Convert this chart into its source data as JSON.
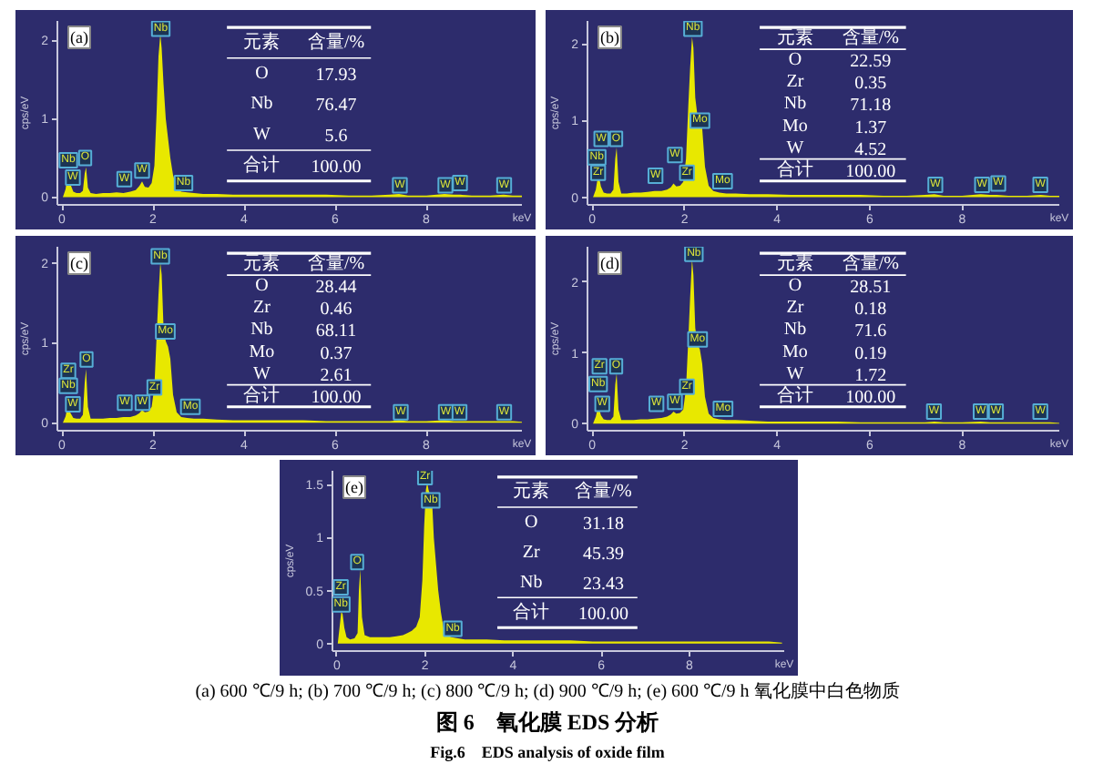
{
  "chart_data": [
    {
      "type": "area",
      "title": "(a)",
      "xlabel": "keV",
      "ylabel": "cps/eV",
      "color": "#e8e800",
      "xlim": [
        -0.1,
        10.1
      ],
      "ylim": [
        -0.1,
        2.25
      ],
      "xticks": [
        0,
        2,
        4,
        6,
        8
      ],
      "yticks": [
        0,
        1,
        2
      ],
      "x": [
        0.02,
        0.08,
        0.12,
        0.15,
        0.19,
        0.25,
        0.32,
        0.4,
        0.46,
        0.5,
        0.53,
        0.57,
        0.63,
        0.75,
        0.9,
        1.05,
        1.2,
        1.35,
        1.5,
        1.62,
        1.7,
        1.76,
        1.82,
        1.9,
        1.97,
        2.03,
        2.08,
        2.12,
        2.16,
        2.19,
        2.23,
        2.28,
        2.33,
        2.38,
        2.44,
        2.52,
        2.62,
        2.75,
        2.9,
        3.1,
        3.4,
        3.8,
        4.3,
        4.8,
        5.3,
        5.8,
        6.3,
        6.8,
        7.2,
        7.4,
        7.6,
        8.0,
        8.4,
        8.6,
        8.75,
        9.0,
        9.4,
        9.7,
        9.9,
        10.1
      ],
      "values": [
        0,
        0.1,
        0.28,
        null,
        0.16,
        0.07,
        0.05,
        0.05,
        0.08,
        0.3,
        0.38,
        0.12,
        0.05,
        0.04,
        0.05,
        0.05,
        0.06,
        0.05,
        0.07,
        0.09,
        0.14,
        0.2,
        0.13,
        0.12,
        0.18,
        0.4,
        1.1,
        1.8,
        2.08,
        1.9,
        1.45,
        1.0,
        0.75,
        0.5,
        0.28,
        0.12,
        0.07,
        0.06,
        0.05,
        0.04,
        0.04,
        0.03,
        0.03,
        0.03,
        0.03,
        0.03,
        0.02,
        0.02,
        0.03,
        0.04,
        0.02,
        0.02,
        0.04,
        0.03,
        0.03,
        0.02,
        0.02,
        0.03,
        0.02,
        0.02
      ],
      "annotations": [
        {
          "text": "Nb",
          "x": 0.14,
          "y": 0.47
        },
        {
          "text": "W",
          "x": 0.24,
          "y": 0.25
        },
        {
          "text": "O",
          "x": 0.51,
          "y": 0.5
        },
        {
          "text": "W",
          "x": 1.37,
          "y": 0.23
        },
        {
          "text": "W",
          "x": 1.76,
          "y": 0.34
        },
        {
          "text": "Nb",
          "x": 2.17,
          "y": 2.15
        },
        {
          "text": "Nb",
          "x": 2.67,
          "y": 0.18
        },
        {
          "text": "W",
          "x": 7.42,
          "y": 0.15
        },
        {
          "text": "W",
          "x": 8.42,
          "y": 0.15
        },
        {
          "text": "W",
          "x": 8.74,
          "y": 0.18
        },
        {
          "text": "W",
          "x": 9.71,
          "y": 0.15
        },
        "元素",
        "含量/%",
        "O",
        "17.93",
        "Nb",
        "76.47",
        "W",
        "5.6",
        "合计",
        "100.00"
      ]
    },
    {
      "type": "area",
      "title": "(b)",
      "xlabel": "keV",
      "ylabel": "cps/eV",
      "color": "#e8e800",
      "xlim": [
        -0.1,
        10.1
      ],
      "ylim": [
        -0.1,
        2.3
      ],
      "xticks": [
        0,
        2,
        4,
        6,
        8
      ],
      "yticks": [
        0,
        1,
        2
      ],
      "x": [
        0.02,
        0.08,
        0.12,
        0.15,
        0.19,
        0.25,
        0.32,
        0.4,
        0.46,
        0.5,
        0.53,
        0.57,
        0.63,
        0.75,
        0.9,
        1.05,
        1.2,
        1.35,
        1.5,
        1.62,
        1.7,
        1.76,
        1.82,
        1.9,
        1.97,
        2.03,
        2.08,
        2.12,
        2.16,
        2.19,
        2.23,
        2.28,
        2.33,
        2.38,
        2.44,
        2.52,
        2.62,
        2.75,
        2.9,
        3.1,
        3.4,
        3.8,
        4.3,
        4.8,
        5.3,
        5.8,
        6.3,
        6.8,
        7.2,
        7.4,
        7.6,
        8.0,
        8.4,
        8.6,
        8.75,
        9.0,
        9.4,
        9.7,
        9.9,
        10.1
      ],
      "values": [
        0,
        0.1,
        0.25,
        0.27,
        0.14,
        0.06,
        0.05,
        0.05,
        0.1,
        0.5,
        0.65,
        0.2,
        0.05,
        0.05,
        0.06,
        0.06,
        0.07,
        0.08,
        0.08,
        0.1,
        0.13,
        0.18,
        0.14,
        0.15,
        0.2,
        0.5,
        1.2,
        1.7,
        2.09,
        1.95,
        1.3,
        1.05,
        1.0,
        0.9,
        0.4,
        0.15,
        0.08,
        0.06,
        0.05,
        0.05,
        0.04,
        0.04,
        0.03,
        0.03,
        0.03,
        0.03,
        0.02,
        0.02,
        0.03,
        0.04,
        0.02,
        0.02,
        0.04,
        0.03,
        0.03,
        0.02,
        0.02,
        0.03,
        0.02,
        0.02
      ],
      "annotations": [
        {
          "text": "Nb",
          "x": 0.1,
          "y": 0.52
        },
        {
          "text": "Zr",
          "x": 0.13,
          "y": 0.32
        },
        {
          "text": "W",
          "x": 0.2,
          "y": 0.76
        },
        {
          "text": "O",
          "x": 0.52,
          "y": 0.76
        },
        {
          "text": "W",
          "x": 1.37,
          "y": 0.28
        },
        {
          "text": "W",
          "x": 1.79,
          "y": 0.55
        },
        {
          "text": "Zr",
          "x": 2.05,
          "y": 0.32
        },
        {
          "text": "Nb",
          "x": 2.18,
          "y": 2.2
        },
        {
          "text": "Mo",
          "x": 2.33,
          "y": 1.0
        },
        {
          "text": "Mo",
          "x": 2.82,
          "y": 0.21
        },
        {
          "text": "W",
          "x": 7.42,
          "y": 0.16
        },
        {
          "text": "W",
          "x": 8.43,
          "y": 0.16
        },
        {
          "text": "W",
          "x": 8.78,
          "y": 0.18
        },
        {
          "text": "W",
          "x": 9.69,
          "y": 0.16
        },
        "元素",
        "含量/%",
        "O",
        "22.59",
        "Zr",
        "0.35",
        "Nb",
        "71.18",
        "Mo",
        "1.37",
        "W",
        "4.52",
        "合计",
        "100.00"
      ]
    },
    {
      "type": "area",
      "title": "(c)",
      "xlabel": "keV",
      "ylabel": "cps/eV",
      "color": "#e8e800",
      "xlim": [
        -0.1,
        10.1
      ],
      "ylim": [
        -0.1,
        2.2
      ],
      "xticks": [
        0,
        2,
        4,
        6,
        8
      ],
      "yticks": [
        0,
        1,
        2
      ],
      "x": [
        0.02,
        0.08,
        0.12,
        0.15,
        0.19,
        0.25,
        0.32,
        0.4,
        0.46,
        0.5,
        0.53,
        0.57,
        0.63,
        0.75,
        0.9,
        1.05,
        1.2,
        1.35,
        1.5,
        1.62,
        1.7,
        1.76,
        1.82,
        1.9,
        1.97,
        2.03,
        2.08,
        2.12,
        2.16,
        2.19,
        2.23,
        2.28,
        2.33,
        2.38,
        2.44,
        2.52,
        2.62,
        2.75,
        2.9,
        3.1,
        3.4,
        3.8,
        4.3,
        4.8,
        5.3,
        5.8,
        6.3,
        6.8,
        7.2,
        7.4,
        7.6,
        8.0,
        8.4,
        8.6,
        8.75,
        9.0,
        9.4,
        9.7,
        9.9,
        10.1
      ],
      "values": [
        0,
        0.08,
        0.2,
        null,
        0.12,
        0.06,
        0.05,
        0.05,
        0.1,
        0.5,
        0.67,
        0.2,
        0.05,
        0.05,
        0.05,
        0.06,
        0.06,
        0.07,
        0.07,
        0.09,
        0.12,
        0.16,
        0.13,
        0.14,
        0.2,
        0.45,
        1.1,
        1.6,
        2.0,
        1.85,
        1.2,
        1.02,
        0.95,
        0.8,
        0.35,
        0.13,
        0.07,
        0.06,
        0.05,
        0.05,
        0.04,
        0.03,
        0.03,
        0.03,
        0.03,
        0.02,
        0.02,
        0.02,
        0.02,
        0.03,
        0.02,
        0.02,
        0.03,
        0.02,
        0.02,
        0.02,
        0.02,
        0.02,
        0.02,
        0.01
      ],
      "annotations": [
        {
          "text": "Zr",
          "x": 0.14,
          "y": 0.65
        },
        {
          "text": "Nb",
          "x": 0.14,
          "y": 0.46
        },
        {
          "text": "W",
          "x": 0.24,
          "y": 0.23
        },
        {
          "text": "O",
          "x": 0.54,
          "y": 0.79
        },
        {
          "text": "W",
          "x": 1.38,
          "y": 0.25
        },
        {
          "text": "W",
          "x": 1.77,
          "y": 0.25
        },
        {
          "text": "Zr",
          "x": 2.03,
          "y": 0.44
        },
        {
          "text": "Nb",
          "x": 2.16,
          "y": 2.08
        },
        {
          "text": "Mo",
          "x": 2.27,
          "y": 1.14
        },
        {
          "text": "Mo",
          "x": 2.82,
          "y": 0.2
        },
        {
          "text": "W",
          "x": 7.44,
          "y": 0.13
        },
        {
          "text": "W",
          "x": 8.43,
          "y": 0.13
        },
        {
          "text": "W",
          "x": 8.73,
          "y": 0.13
        },
        {
          "text": "W",
          "x": 9.71,
          "y": 0.13
        },
        "元素",
        "含量/%",
        "O",
        "28.44",
        "Zr",
        "0.46",
        "Nb",
        "68.11",
        "Mo",
        "0.37",
        "W",
        "2.61",
        "合计",
        "100.00"
      ]
    },
    {
      "type": "area",
      "title": "(d)",
      "xlabel": "keV",
      "ylabel": "cps/eV",
      "color": "#e8e800",
      "xlim": [
        -0.1,
        10.1
      ],
      "ylim": [
        -0.1,
        2.5
      ],
      "xticks": [
        0,
        2,
        4,
        6,
        8
      ],
      "yticks": [
        0,
        1,
        2
      ],
      "x": [
        0.02,
        0.08,
        0.12,
        0.15,
        0.19,
        0.25,
        0.32,
        0.4,
        0.46,
        0.5,
        0.53,
        0.57,
        0.63,
        0.75,
        0.9,
        1.05,
        1.2,
        1.35,
        1.5,
        1.62,
        1.7,
        1.76,
        1.82,
        1.9,
        1.97,
        2.03,
        2.08,
        2.12,
        2.16,
        2.19,
        2.23,
        2.28,
        2.33,
        2.38,
        2.44,
        2.52,
        2.62,
        2.75,
        2.9,
        3.1,
        3.4,
        3.8,
        4.3,
        4.8,
        5.3,
        5.8,
        6.3,
        6.8,
        7.2,
        7.4,
        7.6,
        8.0,
        8.4,
        8.6,
        8.75,
        9.0,
        9.4,
        9.7,
        9.9,
        10.1
      ],
      "values": [
        0,
        0.1,
        0.22,
        0.22,
        0.12,
        0.06,
        0.05,
        0.05,
        0.1,
        0.55,
        0.71,
        0.2,
        0.05,
        0.05,
        0.05,
        0.06,
        0.06,
        0.07,
        0.08,
        0.1,
        0.13,
        0.17,
        0.14,
        0.15,
        0.2,
        0.5,
        1.2,
        1.8,
        2.32,
        2.1,
        1.35,
        1.12,
        1.05,
        0.85,
        0.38,
        0.14,
        0.08,
        0.06,
        0.05,
        0.05,
        0.04,
        0.03,
        0.03,
        0.03,
        0.03,
        0.02,
        0.02,
        0.02,
        0.02,
        0.03,
        0.02,
        0.02,
        0.03,
        0.02,
        0.02,
        0.02,
        0.02,
        0.02,
        0.02,
        0.01
      ],
      "annotations": [
        {
          "text": "Zr",
          "x": 0.16,
          "y": 0.81
        },
        {
          "text": "Nb",
          "x": 0.13,
          "y": 0.56
        },
        {
          "text": "W",
          "x": 0.22,
          "y": 0.28
        },
        {
          "text": "O",
          "x": 0.52,
          "y": 0.81
        },
        {
          "text": "W",
          "x": 1.39,
          "y": 0.28
        },
        {
          "text": "W",
          "x": 1.79,
          "y": 0.31
        },
        {
          "text": "Zr",
          "x": 2.05,
          "y": 0.52
        },
        {
          "text": "Nb",
          "x": 2.2,
          "y": 2.4
        },
        {
          "text": "Mo",
          "x": 2.28,
          "y": 1.19
        },
        {
          "text": "Mo",
          "x": 2.83,
          "y": 0.21
        },
        {
          "text": "W",
          "x": 7.39,
          "y": 0.17
        },
        {
          "text": "W",
          "x": 8.4,
          "y": 0.17
        },
        {
          "text": "W",
          "x": 8.73,
          "y": 0.17
        },
        {
          "text": "W",
          "x": 9.69,
          "y": 0.17
        },
        "元素",
        "含量/%",
        "O",
        "28.51",
        "Zr",
        "0.18",
        "Nb",
        "71.6",
        "Mo",
        "0.19",
        "W",
        "1.72",
        "合计",
        "100.00"
      ]
    },
    {
      "type": "area",
      "title": "(e)",
      "xlabel": "keV",
      "ylabel": "cps/eV",
      "color": "#e8e800",
      "xlim": [
        -0.1,
        10.15
      ],
      "ylim": [
        -0.07,
        1.63
      ],
      "xticks": [
        0,
        2,
        4,
        6,
        8
      ],
      "yticks": [
        0,
        0.5,
        1,
        1.5
      ],
      "x": [
        0.02,
        0.06,
        0.1,
        0.13,
        0.17,
        0.22,
        0.3,
        0.4,
        0.47,
        0.5,
        0.53,
        0.57,
        0.63,
        0.75,
        0.9,
        1.05,
        1.2,
        1.35,
        1.5,
        1.6,
        1.7,
        1.8,
        1.88,
        1.94,
        1.98,
        2.02,
        2.05,
        2.08,
        2.12,
        2.16,
        2.2,
        2.25,
        2.3,
        2.36,
        2.42,
        2.5,
        2.6,
        2.75,
        2.9,
        3.1,
        3.4,
        3.8,
        4.3,
        4.8,
        5.3,
        5.8,
        6.3,
        6.8,
        7.3,
        7.8,
        8.3,
        8.8,
        9.3,
        9.8,
        10.1
      ],
      "values": [
        0,
        0.15,
        0.3,
        0.28,
        0.15,
        0.06,
        0.04,
        0.05,
        0.1,
        0.5,
        0.7,
        0.25,
        0.08,
        0.06,
        0.06,
        0.06,
        0.06,
        0.07,
        0.08,
        0.1,
        0.12,
        0.16,
        0.25,
        0.6,
        1.1,
        1.45,
        1.52,
        1.45,
        1.4,
        1.35,
        1.0,
        0.75,
        0.5,
        0.3,
        0.15,
        0.08,
        0.06,
        0.05,
        0.04,
        0.04,
        0.04,
        0.03,
        0.03,
        0.03,
        0.03,
        0.02,
        0.02,
        0.02,
        0.02,
        0.02,
        0.02,
        0.02,
        0.02,
        0.02,
        0.01
      ],
      "annotations": [
        {
          "text": "Zr",
          "x": 2.0,
          "y": 1.57
        },
        {
          "text": "Nb",
          "x": 2.13,
          "y": 1.35
        },
        {
          "text": "O",
          "x": 0.46,
          "y": 0.77
        },
        {
          "text": "Zr",
          "x": 0.09,
          "y": 0.53
        },
        {
          "text": "Nb",
          "x": 0.09,
          "y": 0.37
        },
        {
          "text": "Nb",
          "x": 2.63,
          "y": 0.14
        },
        "元素",
        "含量/%",
        "O",
        "31.18",
        "Zr",
        "45.39",
        "Nb",
        "23.43",
        "合计",
        "100.00"
      ]
    },
    {
      "type": "other",
      "title": "图 6　氧化膜 EDS 分析",
      "subtitle": "Fig.6　EDS analysis of oxide film",
      "annotations": [
        "(a) 600 ℃/9 h; (b) 700 ℃/9 h; (c) 800 ℃/9 h; (d) 900 ℃/9 h; (e) 600 ℃/9 h 氧化膜中白色物质"
      ]
    }
  ]
}
